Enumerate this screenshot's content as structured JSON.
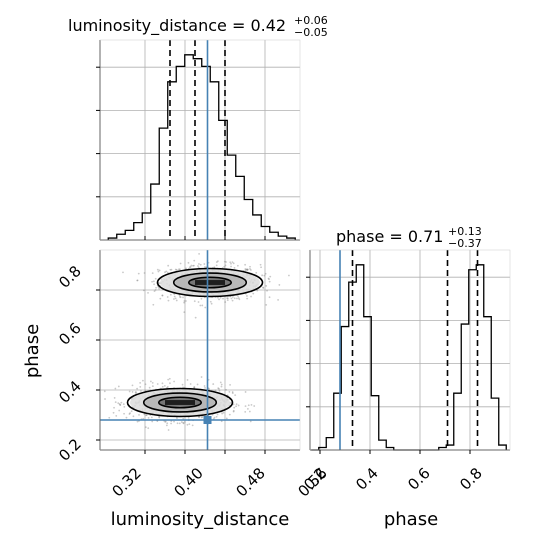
{
  "chart_data": [
    {
      "type": "histogram",
      "panel": "luminosity_distance marginal",
      "title": {
        "text": "luminosity_distance = 0.42",
        "sup": "+0.06",
        "sub": "−0.05"
      },
      "x": [
        0.255,
        0.272,
        0.289,
        0.306,
        0.323,
        0.34,
        0.357,
        0.374,
        0.391,
        0.408,
        0.425,
        0.442,
        0.459,
        0.476,
        0.493,
        0.51,
        0.527,
        0.544,
        0.561,
        0.578,
        0.595,
        0.612
      ],
      "counts": [
        1,
        3,
        5,
        9,
        14,
        29,
        58,
        82,
        90,
        96,
        94,
        90,
        82,
        62,
        44,
        33,
        21,
        13,
        7,
        4,
        2,
        1
      ],
      "xlim": [
        0.23,
        0.63
      ],
      "quantiles": [
        0.37,
        0.42,
        0.48
      ],
      "truth": 0.445,
      "grid": true,
      "colors": {
        "hist": "#000000",
        "truth": "#4682b4"
      }
    },
    {
      "type": "histogram",
      "panel": "phase marginal",
      "title": {
        "text": "phase = 0.71",
        "sup": "+0.13",
        "sub": "−0.37"
      },
      "x": [
        0.18,
        0.21,
        0.24,
        0.27,
        0.3,
        0.33,
        0.36,
        0.39,
        0.42,
        0.45,
        0.48,
        0.51,
        0.54,
        0.57,
        0.6,
        0.63,
        0.66,
        0.69,
        0.72,
        0.75,
        0.78,
        0.81,
        0.84,
        0.87,
        0.9,
        0.93
      ],
      "counts": [
        0,
        1,
        5,
        23,
        50,
        68,
        75,
        54,
        22,
        4,
        1,
        0,
        0,
        0,
        0,
        0,
        0,
        1,
        2,
        23,
        51,
        73,
        75,
        54,
        21,
        2
      ],
      "xlim": [
        0.16,
        0.96
      ],
      "quantiles": [
        0.33,
        0.71,
        0.83
      ],
      "truth": 0.28,
      "grid": true,
      "xticks": [
        "0.2",
        "0.4",
        "0.6",
        "0.8"
      ],
      "xlabel": "phase",
      "colors": {
        "hist": "#000000",
        "truth": "#4682b4"
      }
    },
    {
      "type": "scatter",
      "panel": "2D posterior",
      "xlabel": "luminosity_distance",
      "ylabel": "phase",
      "xlim": [
        0.23,
        0.63
      ],
      "ylim": [
        0.16,
        0.96
      ],
      "xticks": [
        "0.32",
        "0.40",
        "0.48",
        "0.56"
      ],
      "yticks": [
        "0.2",
        "0.4",
        "0.6",
        "0.8"
      ],
      "modes": [
        {
          "x": 0.45,
          "y": 0.83,
          "sx": 0.05,
          "sy": 0.035
        },
        {
          "x": 0.39,
          "y": 0.35,
          "sx": 0.05,
          "sy": 0.035
        }
      ],
      "truth": {
        "x": 0.445,
        "y": 0.28
      },
      "grid": true,
      "colors": {
        "points": "#888888",
        "contour": "#000000",
        "truth": "#4682b4"
      }
    }
  ]
}
